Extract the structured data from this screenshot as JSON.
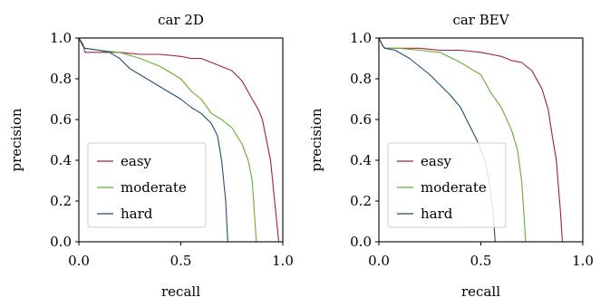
{
  "chart_data": [
    {
      "type": "line",
      "title": "car 2D",
      "xlabel": "recall",
      "ylabel": "precision",
      "xlim": [
        0,
        1
      ],
      "ylim": [
        0,
        1
      ],
      "xticks": [
        "0.0",
        "0.5",
        "1.0"
      ],
      "yticks": [
        "0.0",
        "0.2",
        "0.4",
        "0.6",
        "0.8",
        "1.0"
      ],
      "legend_position": "lower-left",
      "grid": false,
      "series": [
        {
          "name": "easy",
          "color": "#a3203a",
          "x": [
            0,
            0.02,
            0.03,
            0.1,
            0.2,
            0.3,
            0.4,
            0.5,
            0.55,
            0.6,
            0.65,
            0.7,
            0.75,
            0.8,
            0.85,
            0.88,
            0.9,
            0.92,
            0.94,
            0.96,
            0.98
          ],
          "y": [
            1.0,
            0.97,
            0.93,
            0.93,
            0.93,
            0.92,
            0.92,
            0.91,
            0.9,
            0.9,
            0.88,
            0.86,
            0.84,
            0.79,
            0.7,
            0.65,
            0.6,
            0.5,
            0.4,
            0.2,
            0.0
          ]
        },
        {
          "name": "moderate",
          "color": "#66b032",
          "x": [
            0,
            0.02,
            0.03,
            0.1,
            0.2,
            0.3,
            0.4,
            0.5,
            0.55,
            0.6,
            0.65,
            0.7,
            0.75,
            0.8,
            0.83,
            0.85,
            0.86,
            0.87
          ],
          "y": [
            1.0,
            0.96,
            0.95,
            0.94,
            0.93,
            0.9,
            0.86,
            0.8,
            0.74,
            0.7,
            0.63,
            0.6,
            0.56,
            0.48,
            0.4,
            0.3,
            0.15,
            0.0
          ]
        },
        {
          "name": "hard",
          "color": "#1f4e79",
          "x": [
            0,
            0.02,
            0.03,
            0.1,
            0.15,
            0.2,
            0.25,
            0.3,
            0.4,
            0.5,
            0.55,
            0.6,
            0.65,
            0.68,
            0.7,
            0.72,
            0.73
          ],
          "y": [
            1.0,
            0.96,
            0.95,
            0.94,
            0.93,
            0.9,
            0.85,
            0.82,
            0.76,
            0.7,
            0.66,
            0.63,
            0.58,
            0.52,
            0.4,
            0.2,
            0.0
          ]
        }
      ]
    },
    {
      "type": "line",
      "title": "car BEV",
      "xlabel": "recall",
      "ylabel": "precision",
      "xlim": [
        0,
        1
      ],
      "ylim": [
        0,
        1
      ],
      "xticks": [
        "0.0",
        "0.5",
        "1.0"
      ],
      "yticks": [
        "0.0",
        "0.2",
        "0.4",
        "0.6",
        "0.8",
        "1.0"
      ],
      "legend_position": "lower-left",
      "grid": false,
      "series": [
        {
          "name": "easy",
          "color": "#a3203a",
          "x": [
            0,
            0.02,
            0.03,
            0.1,
            0.2,
            0.3,
            0.4,
            0.5,
            0.55,
            0.6,
            0.65,
            0.7,
            0.75,
            0.8,
            0.83,
            0.85,
            0.87,
            0.89,
            0.9
          ],
          "y": [
            1.0,
            0.96,
            0.95,
            0.95,
            0.95,
            0.94,
            0.94,
            0.93,
            0.92,
            0.91,
            0.89,
            0.88,
            0.84,
            0.75,
            0.65,
            0.52,
            0.4,
            0.15,
            0.0
          ]
        },
        {
          "name": "moderate",
          "color": "#66b032",
          "x": [
            0,
            0.02,
            0.03,
            0.1,
            0.2,
            0.3,
            0.4,
            0.45,
            0.5,
            0.55,
            0.6,
            0.65,
            0.68,
            0.7,
            0.71,
            0.72
          ],
          "y": [
            1.0,
            0.96,
            0.95,
            0.95,
            0.94,
            0.93,
            0.88,
            0.85,
            0.82,
            0.73,
            0.66,
            0.55,
            0.45,
            0.3,
            0.15,
            0.0
          ]
        },
        {
          "name": "hard",
          "color": "#1f4e79",
          "x": [
            0,
            0.02,
            0.03,
            0.08,
            0.15,
            0.2,
            0.25,
            0.3,
            0.35,
            0.4,
            0.45,
            0.48,
            0.5,
            0.52,
            0.54,
            0.56,
            0.57
          ],
          "y": [
            1.0,
            0.96,
            0.95,
            0.94,
            0.9,
            0.86,
            0.82,
            0.77,
            0.72,
            0.66,
            0.56,
            0.5,
            0.45,
            0.4,
            0.3,
            0.15,
            0.0
          ]
        }
      ]
    }
  ]
}
